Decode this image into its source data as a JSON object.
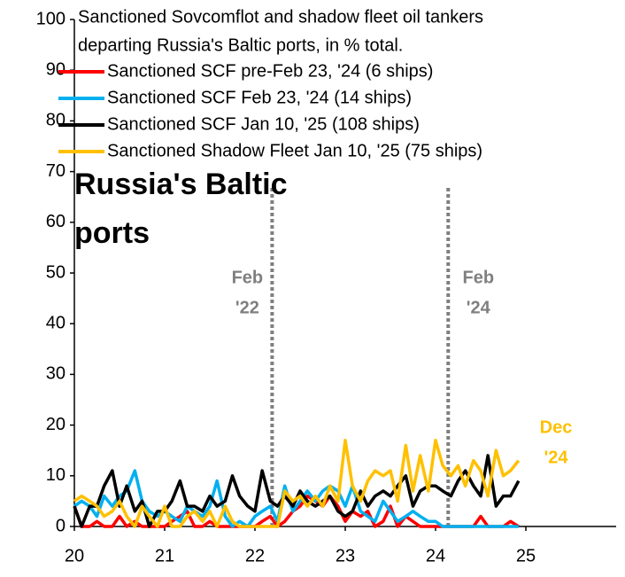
{
  "chart_data": {
    "type": "line",
    "title": [
      "Sanctioned Sovcomflot and shadow fleet oil tankers",
      "departing Russia's Baltic ports, in % total."
    ],
    "label": [
      "Russia's Baltic",
      "ports"
    ],
    "x": [
      20,
      20.08,
      20.17,
      20.25,
      20.33,
      20.42,
      20.5,
      20.58,
      20.67,
      20.75,
      20.83,
      20.92,
      21,
      21.08,
      21.17,
      21.25,
      21.33,
      21.42,
      21.5,
      21.58,
      21.67,
      21.75,
      21.83,
      21.92,
      22,
      22.08,
      22.17,
      22.25,
      22.33,
      22.42,
      22.5,
      22.58,
      22.67,
      22.75,
      22.83,
      22.92,
      23,
      23.08,
      23.17,
      23.25,
      23.33,
      23.42,
      23.5,
      23.58,
      23.67,
      23.75,
      23.83,
      23.92,
      24,
      24.08,
      24.17,
      24.25,
      24.33,
      24.42,
      24.5,
      24.58,
      24.67,
      24.75,
      24.83,
      24.92
    ],
    "series": [
      {
        "name": "Sanctioned SCF pre-Feb 23, '24 (6 ships)",
        "color": "#ff0000",
        "values": [
          4,
          0,
          0,
          1,
          0,
          0,
          2,
          0,
          1,
          0,
          0,
          0,
          0,
          1,
          2,
          3,
          0,
          0,
          1,
          0,
          0,
          0,
          0,
          0,
          0,
          1,
          2,
          0,
          1,
          3,
          4,
          6,
          5,
          4,
          6,
          4,
          1,
          3,
          2,
          3,
          0,
          1,
          4,
          0,
          2,
          1,
          0,
          0,
          0,
          0,
          0,
          0,
          0,
          0,
          2,
          0,
          0,
          0,
          1,
          0
        ]
      },
      {
        "name": "Sanctioned SCF Feb 23, '24 (14 ships)",
        "color": "#00b0f0",
        "values": [
          4,
          5,
          4,
          2,
          6,
          4,
          6,
          7,
          11,
          5,
          3,
          2,
          3,
          2,
          1,
          4,
          3,
          2,
          4,
          9,
          2,
          0,
          1,
          0,
          2,
          3,
          4,
          1,
          8,
          3,
          5,
          7,
          5,
          7,
          8,
          7,
          4,
          8,
          3,
          2,
          1,
          5,
          3,
          1,
          2,
          3,
          2,
          1,
          1,
          0,
          0,
          0,
          0,
          0,
          0,
          0,
          0,
          0,
          0,
          0
        ]
      },
      {
        "name": "Sanctioned SCF Jan 10, '25 (108 ships)",
        "color": "#000000",
        "values": [
          4,
          0,
          4,
          4,
          8,
          11,
          4,
          8,
          3,
          5,
          0,
          3,
          3,
          5,
          9,
          4,
          4,
          3,
          6,
          4,
          5,
          10,
          6,
          4,
          3,
          11,
          5,
          4,
          6,
          4,
          7,
          5,
          4,
          5,
          6,
          3,
          2,
          3,
          7,
          4,
          6,
          7,
          6,
          8,
          10,
          4,
          7,
          8,
          8,
          7,
          6,
          9,
          11,
          8,
          6,
          14,
          4,
          6,
          6,
          9
        ]
      },
      {
        "name": "Sanctioned Shadow Fleet Jan 10, '25 (75 ships)",
        "color": "#ffc000",
        "values": [
          5,
          6,
          5,
          4,
          2,
          3,
          5,
          2,
          0,
          4,
          2,
          0,
          4,
          0,
          0,
          2,
          3,
          1,
          3,
          0,
          4,
          1,
          0,
          0,
          0,
          0,
          0,
          0,
          7,
          5,
          6,
          4,
          6,
          4,
          8,
          5,
          17,
          8,
          5,
          9,
          11,
          10,
          11,
          5,
          16,
          7,
          14,
          7,
          17,
          12,
          10,
          12,
          8,
          13,
          11,
          6,
          15,
          10,
          11,
          13
        ]
      }
    ],
    "annotations": [
      {
        "x": 22.19,
        "text": [
          "Feb",
          "'22"
        ],
        "color": "#7f7f7f"
      },
      {
        "x": 24.14,
        "text": [
          "Feb",
          "'24"
        ],
        "color": "#7f7f7f"
      }
    ],
    "end_label": {
      "text": [
        "Dec",
        "'24"
      ],
      "color": "#ffc000"
    },
    "xlim": [
      20,
      26
    ],
    "xticks": [
      20,
      21,
      22,
      23,
      24,
      25
    ],
    "ylim": [
      0,
      100
    ],
    "yticks": [
      0,
      10,
      20,
      30,
      40,
      50,
      60,
      70,
      80,
      90,
      100
    ],
    "legend": "top-left",
    "grid": false
  }
}
